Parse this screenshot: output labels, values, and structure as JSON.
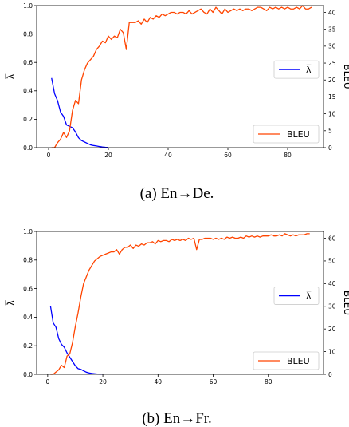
{
  "chart_data": [
    {
      "type": "line",
      "caption": "(a)  En→De.",
      "ylabel_left": "λ̅",
      "ylabel_right": "BLEU",
      "xlim": [
        -4,
        92
      ],
      "ylim_left": [
        0,
        1.0
      ],
      "ylim_right": [
        0,
        42
      ],
      "x_ticks": [
        0,
        20,
        40,
        60,
        80
      ],
      "y_ticks_left": [
        "0.0",
        "0.2",
        "0.4",
        "0.6",
        "0.8",
        "1.0"
      ],
      "y_ticks_right": [
        "0",
        "5",
        "10",
        "15",
        "20",
        "25",
        "30",
        "35",
        "40"
      ],
      "grid": false,
      "series": [
        {
          "name": "λ̅",
          "axis": "left",
          "color": "#0000ff",
          "legend_position": "center-right",
          "x": [
            1,
            2,
            3,
            4,
            5,
            6,
            7,
            8,
            9,
            10,
            11,
            12,
            13,
            14,
            15,
            16,
            17,
            18,
            19,
            20
          ],
          "y": [
            0.49,
            0.38,
            0.33,
            0.25,
            0.22,
            0.16,
            0.15,
            0.14,
            0.11,
            0.07,
            0.05,
            0.04,
            0.03,
            0.02,
            0.015,
            0.012,
            0.008,
            0.005,
            0.003,
            0.002
          ]
        },
        {
          "name": "BLEU",
          "axis": "right",
          "color": "#ff4500",
          "legend_position": "bottom-right",
          "x": [
            1,
            2,
            3,
            4,
            5,
            6,
            7,
            8,
            9,
            10,
            11,
            12,
            13,
            14,
            15,
            16,
            17,
            18,
            19,
            20,
            21,
            22,
            23,
            24,
            25,
            26,
            27,
            28,
            29,
            30,
            31,
            32,
            33,
            34,
            35,
            36,
            37,
            38,
            39,
            40,
            41,
            42,
            43,
            44,
            45,
            46,
            47,
            48,
            49,
            50,
            51,
            52,
            53,
            54,
            55,
            56,
            57,
            58,
            59,
            60,
            61,
            62,
            63,
            64,
            65,
            66,
            67,
            68,
            69,
            70,
            71,
            72,
            73,
            74,
            75,
            76,
            77,
            78,
            79,
            80,
            81,
            82,
            83,
            84,
            85,
            86,
            87,
            88
          ],
          "y": [
            0,
            0,
            1.5,
            2.5,
            4.5,
            3,
            5,
            11,
            14,
            13,
            20,
            23,
            25,
            26,
            27,
            29,
            30,
            31.5,
            31,
            33,
            32,
            33,
            32.5,
            35,
            34,
            29,
            37,
            37,
            37,
            37.5,
            36.5,
            38,
            37,
            38.5,
            38,
            39,
            38.5,
            39.5,
            39,
            39.5,
            40,
            40,
            39.5,
            40,
            40,
            39.5,
            40.5,
            39.5,
            40,
            40.5,
            41,
            40,
            39.5,
            41,
            40,
            41.5,
            40.5,
            39.5,
            41,
            40,
            40.5,
            41,
            40.5,
            41,
            40.5,
            41,
            41,
            40.5,
            41,
            41.5,
            41.5,
            41,
            40.5,
            41.5,
            41,
            41.5,
            41,
            41.5,
            41,
            41.5,
            41,
            41,
            41.5,
            41,
            42,
            41,
            41,
            41.5
          ]
        }
      ]
    },
    {
      "type": "line",
      "caption": "(b)  En→Fr.",
      "ylabel_left": "λ̅",
      "ylabel_right": "BLEU",
      "xlim": [
        -4,
        100
      ],
      "ylim_left": [
        0,
        1.0
      ],
      "ylim_right": [
        0,
        63
      ],
      "x_ticks": [
        0,
        20,
        40,
        60,
        80
      ],
      "y_ticks_left": [
        "0.0",
        "0.2",
        "0.4",
        "0.6",
        "0.8",
        "1.0"
      ],
      "y_ticks_right": [
        "0",
        "10",
        "20",
        "30",
        "40",
        "50",
        "60"
      ],
      "grid": false,
      "series": [
        {
          "name": "λ̅",
          "axis": "left",
          "color": "#0000ff",
          "legend_position": "center-right",
          "x": [
            1,
            2,
            3,
            4,
            5,
            6,
            7,
            8,
            9,
            10,
            11,
            12,
            13,
            14,
            15,
            16,
            17,
            18,
            19,
            20
          ],
          "y": [
            0.48,
            0.36,
            0.33,
            0.25,
            0.21,
            0.19,
            0.15,
            0.12,
            0.09,
            0.06,
            0.04,
            0.035,
            0.025,
            0.015,
            0.01,
            0.006,
            0.004,
            0.002,
            0.001,
            0.001
          ]
        },
        {
          "name": "BLEU",
          "axis": "right",
          "color": "#ff4500",
          "legend_position": "bottom-right",
          "x": [
            1,
            2,
            3,
            4,
            5,
            6,
            7,
            8,
            9,
            10,
            11,
            12,
            13,
            14,
            15,
            16,
            17,
            18,
            19,
            20,
            21,
            22,
            23,
            24,
            25,
            26,
            27,
            28,
            29,
            30,
            31,
            32,
            33,
            34,
            35,
            36,
            37,
            38,
            39,
            40,
            41,
            42,
            43,
            44,
            45,
            46,
            47,
            48,
            49,
            50,
            51,
            52,
            53,
            54,
            55,
            56,
            57,
            58,
            59,
            60,
            61,
            62,
            63,
            64,
            65,
            66,
            67,
            68,
            69,
            70,
            71,
            72,
            73,
            74,
            75,
            76,
            77,
            78,
            79,
            80,
            81,
            82,
            83,
            84,
            85,
            86,
            87,
            88,
            89,
            90,
            91,
            92,
            93,
            94,
            95
          ],
          "y": [
            0,
            0,
            1,
            2,
            4,
            3,
            8,
            9,
            14,
            21,
            27,
            34,
            40,
            43,
            46,
            48,
            50,
            51,
            52,
            52.5,
            53,
            53.5,
            54,
            54,
            55,
            53,
            55,
            56,
            56,
            57,
            55.5,
            57,
            56.5,
            57.5,
            57,
            58,
            58,
            58.5,
            57.5,
            59,
            58.5,
            59,
            59,
            58.5,
            59.5,
            59,
            59.5,
            59,
            59.5,
            59,
            60,
            59.5,
            60,
            55,
            59.5,
            59.5,
            60,
            60,
            60,
            59.5,
            60,
            59.5,
            60,
            59.5,
            60.5,
            60,
            60.5,
            60,
            60,
            60.5,
            60,
            61,
            60.5,
            61,
            60.5,
            61,
            60.5,
            61,
            61,
            61,
            61.5,
            61,
            61,
            61.5,
            61,
            62,
            61.5,
            61,
            61.5,
            61,
            61.5,
            61.5,
            61.5,
            62,
            62
          ]
        }
      ]
    }
  ]
}
